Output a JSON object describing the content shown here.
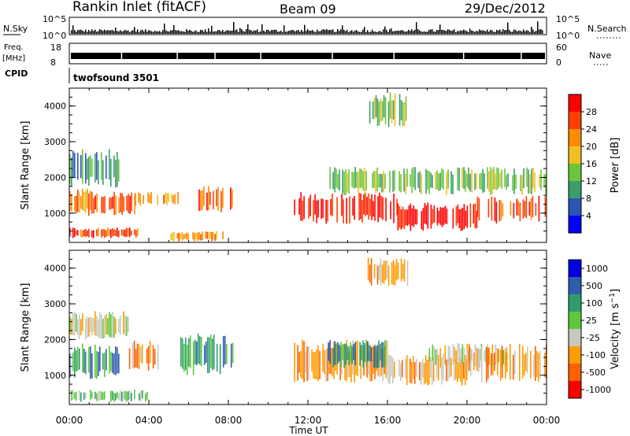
{
  "header": {
    "station": "Rankin Inlet (fitACF)",
    "beam": "Beam 09",
    "date": "29/Dec/2012"
  },
  "top_panels": {
    "nsky": {
      "label": "N.Sky",
      "ticks_left": [
        "10^5",
        "10^0"
      ],
      "right_label": "N.Search",
      "ticks_right": [
        "10^5",
        "10^0"
      ]
    },
    "freq": {
      "label_line1": "Freq.",
      "label_line2": "[MHz]",
      "ticks_left": [
        "18",
        "8"
      ],
      "right_label": "Nave",
      "ticks_right": [
        "60",
        "0"
      ]
    },
    "cpid": {
      "label": "CPID",
      "value": "twofsound 3501"
    }
  },
  "x_axis": {
    "label": "Time UT",
    "ticks": [
      "00:00",
      "04:00",
      "08:00",
      "12:00",
      "16:00",
      "20:00",
      "00:00"
    ]
  },
  "colors": {
    "power_scale": [
      "#0000ff",
      "#2c56b4",
      "#3a9e6a",
      "#6cc63c",
      "#f0c020",
      "#ff8c00",
      "#ff4000",
      "#ff0000"
    ],
    "velocity_scale": [
      "#0000e0",
      "#2f5dae",
      "#2f9c6e",
      "#5cc83a",
      "#c8c8c0",
      "#ff9c00",
      "#ff6000",
      "#ff0000"
    ]
  },
  "chart_data": [
    {
      "type": "heatmap",
      "name": "power",
      "ylabel": "Slant Range [km]",
      "ylim": [
        180,
        4500
      ],
      "yticks": [
        "1000",
        "2000",
        "3000",
        "4000"
      ],
      "xlim_hours": [
        0,
        24
      ],
      "colorbar": {
        "label": "Power [dB]",
        "ticks": [
          "4",
          "8",
          "12",
          "16",
          "20",
          "24",
          "28"
        ],
        "range": [
          0,
          32
        ]
      },
      "regions": [
        {
          "t": [
            0.0,
            1.2
          ],
          "r": [
            900,
            1700
          ],
          "level": 5
        },
        {
          "t": [
            1.2,
            3.3
          ],
          "r": [
            950,
            1600
          ],
          "level": 6
        },
        {
          "t": [
            3.3,
            5.5
          ],
          "r": [
            1200,
            1600
          ],
          "level": 5
        },
        {
          "t": [
            6.5,
            8.3
          ],
          "r": [
            1000,
            1800
          ],
          "level": 6
        },
        {
          "t": [
            0.0,
            3.5
          ],
          "r": [
            300,
            600
          ],
          "level": 6
        },
        {
          "t": [
            5.0,
            7.8
          ],
          "r": [
            200,
            500
          ],
          "level": 5
        },
        {
          "t": [
            11.3,
            16.5
          ],
          "r": [
            700,
            1600
          ],
          "level": 7
        },
        {
          "t": [
            16.5,
            20.5
          ],
          "r": [
            500,
            1300
          ],
          "level": 7
        },
        {
          "t": [
            20.5,
            24.0
          ],
          "r": [
            700,
            1500
          ],
          "level": 6
        },
        {
          "t": [
            0.0,
            2.5
          ],
          "r": [
            1700,
            2800
          ],
          "level": 2
        },
        {
          "t": [
            13.0,
            24.0
          ],
          "r": [
            1500,
            2300
          ],
          "level": 3
        },
        {
          "t": [
            15.0,
            17.0
          ],
          "r": [
            3400,
            4400
          ],
          "level": 3
        }
      ]
    },
    {
      "type": "heatmap",
      "name": "velocity",
      "ylabel": "Slant Range [km]",
      "ylim": [
        180,
        4500
      ],
      "yticks": [
        "1000",
        "2000",
        "3000",
        "4000"
      ],
      "xlim_hours": [
        0,
        24
      ],
      "colorbar": {
        "label": "Velocity [m s^-1]",
        "ticks": [
          "1000",
          "500",
          "100",
          "25",
          "-25",
          "-100",
          "-500",
          "-1000"
        ]
      },
      "regions": [
        {
          "t": [
            0.0,
            2.5
          ],
          "r": [
            900,
            1900
          ],
          "level": 2
        },
        {
          "t": [
            0.0,
            3.0
          ],
          "r": [
            2000,
            2800
          ],
          "level": 4
        },
        {
          "t": [
            3.0,
            4.5
          ],
          "r": [
            1100,
            2000
          ],
          "level": 5
        },
        {
          "t": [
            5.5,
            8.2
          ],
          "r": [
            1000,
            2200
          ],
          "level": 2
        },
        {
          "t": [
            11.3,
            16.0
          ],
          "r": [
            800,
            2000
          ],
          "level": 5
        },
        {
          "t": [
            13.0,
            16.0
          ],
          "r": [
            1200,
            2000
          ],
          "level": 2
        },
        {
          "t": [
            16.0,
            20.0
          ],
          "r": [
            700,
            1600
          ],
          "level": 5
        },
        {
          "t": [
            18.0,
            22.0
          ],
          "r": [
            1200,
            1900
          ],
          "level": 4
        },
        {
          "t": [
            20.0,
            24.0
          ],
          "r": [
            800,
            1900
          ],
          "level": 5
        },
        {
          "t": [
            0.0,
            4.0
          ],
          "r": [
            250,
            600
          ],
          "level": 3
        },
        {
          "t": [
            15.0,
            17.0
          ],
          "r": [
            3500,
            4300
          ],
          "level": 5
        }
      ]
    }
  ]
}
